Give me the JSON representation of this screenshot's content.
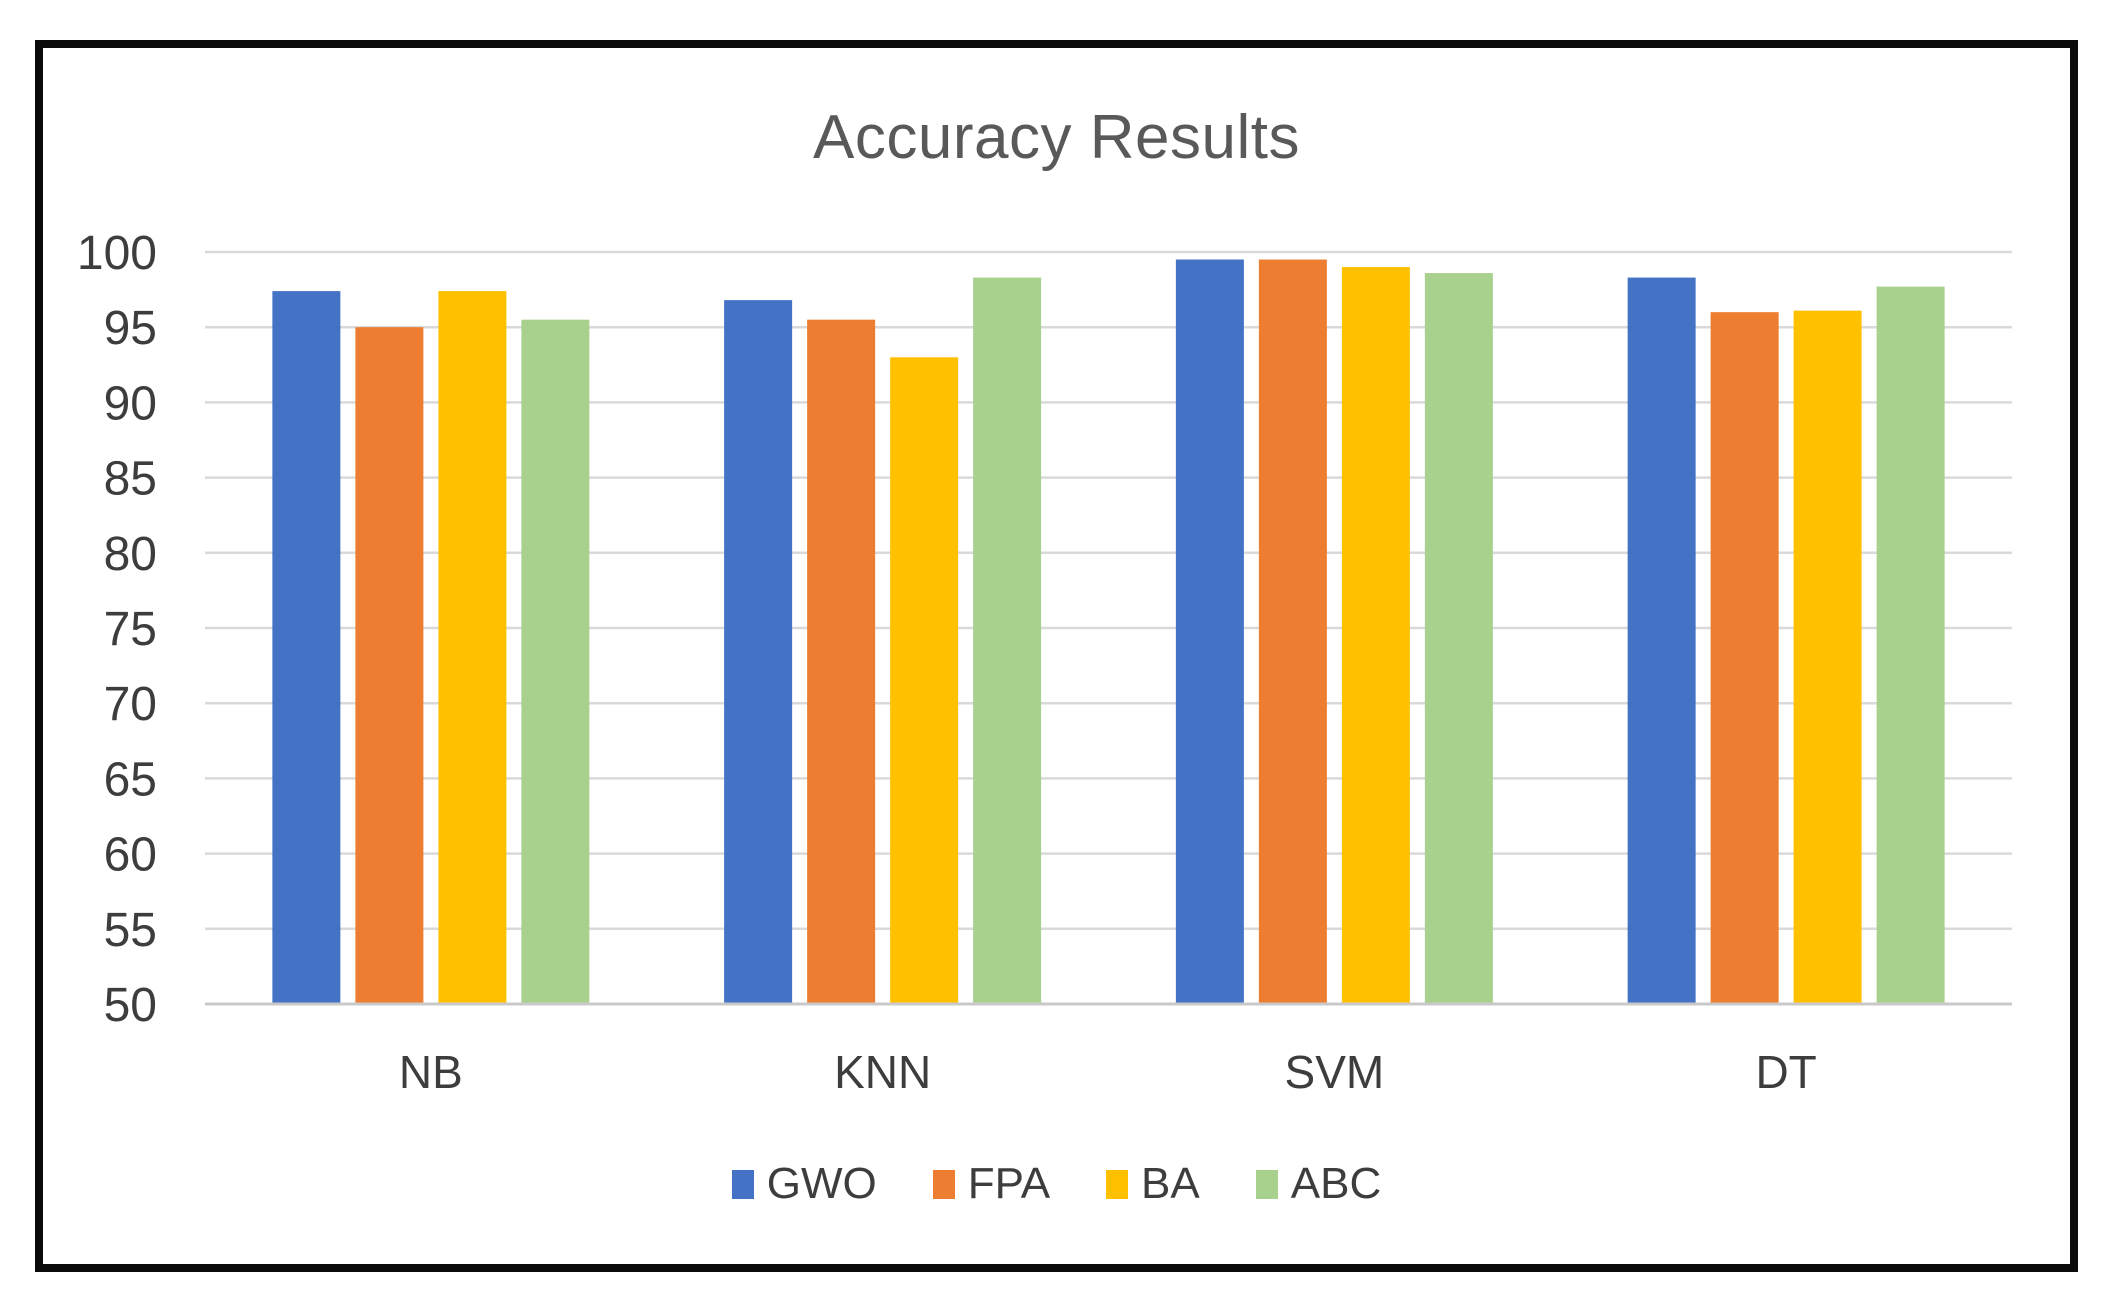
{
  "figure": {
    "background": "#ffffff",
    "frame_border_color": "#0b0b0b"
  },
  "chart_data": {
    "type": "bar",
    "title": "Accuracy Results",
    "title_color": "#595959",
    "xlabel": "",
    "ylabel": "",
    "categories": [
      "NB",
      "KNN",
      "SVM",
      "DT"
    ],
    "series": [
      {
        "name": "GWO",
        "color": "#4472C4",
        "values": [
          97.4,
          96.8,
          99.5,
          98.3
        ]
      },
      {
        "name": "FPA",
        "color": "#ED7D31",
        "values": [
          95.0,
          95.5,
          99.5,
          96.0
        ]
      },
      {
        "name": "BA",
        "color": "#FFC000",
        "values": [
          97.4,
          93.0,
          99.0,
          96.1
        ]
      },
      {
        "name": "ABC",
        "color": "#A9D18E",
        "values": [
          95.5,
          98.3,
          98.6,
          97.7
        ]
      }
    ],
    "ylim": [
      50,
      100
    ],
    "yticks": [
      50,
      55,
      60,
      65,
      70,
      75,
      80,
      85,
      90,
      95,
      100
    ],
    "grid": true,
    "gridline_color": "#D9D9D9",
    "baseline_color": "#C9C9C9",
    "axis_label_color": "#3d3d3d",
    "legend_position": "bottom"
  }
}
